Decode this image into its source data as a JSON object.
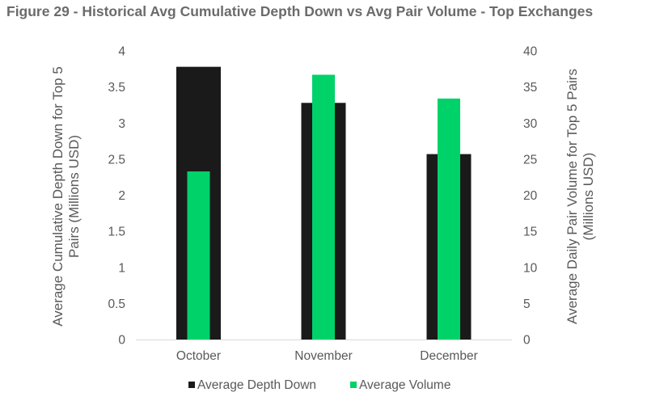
{
  "chart_data": {
    "type": "bar",
    "title": "Figure 29 - Historical Avg Cumulative Depth Down vs Avg Pair Volume - Top Exchanges",
    "categories": [
      "October",
      "November",
      "December"
    ],
    "series": [
      {
        "name": "Average Depth Down",
        "axis": "left",
        "color": "#1a1a1a",
        "values": [
          3.78,
          3.28,
          2.57
        ]
      },
      {
        "name": "Average Volume",
        "axis": "right",
        "color": "#00d26a",
        "values": [
          23.3,
          36.7,
          33.4
        ]
      }
    ],
    "y_left": {
      "label_line1": "Average Cumulative Depth Down for Top 5",
      "label_line2": "Pairs (Millions USD)",
      "ylim": [
        0,
        4
      ],
      "ticks": [
        "0",
        "0.5",
        "1",
        "1.5",
        "2",
        "2.5",
        "3",
        "3.5",
        "4"
      ]
    },
    "y_right": {
      "label_line1": "Average Daily Pair Volume for Top 5 Pairs",
      "label_line2": "(Millions USD)",
      "ylim": [
        0,
        40
      ],
      "ticks": [
        "0",
        "5",
        "10",
        "15",
        "20",
        "25",
        "30",
        "35",
        "40"
      ]
    },
    "xlabel": "",
    "grid": false,
    "legend": "bottom"
  }
}
